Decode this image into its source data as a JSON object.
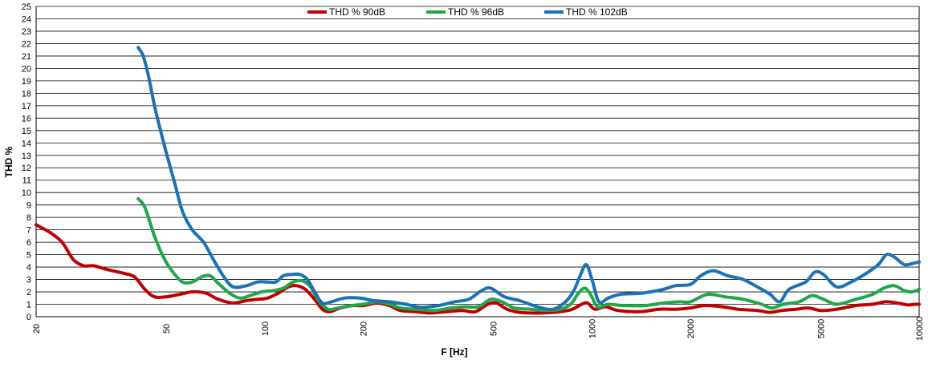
{
  "chart_data": {
    "type": "line",
    "xlabel": "F [Hz]",
    "ylabel": "THD %",
    "xscale": "log",
    "xlim": [
      20,
      10000
    ],
    "ylim": [
      0,
      25
    ],
    "x_ticks": [
      20,
      50,
      100,
      200,
      500,
      1000,
      2000,
      5000,
      10000
    ],
    "y_ticks": [
      0,
      1,
      2,
      3,
      4,
      5,
      6,
      7,
      8,
      9,
      10,
      11,
      12,
      13,
      14,
      15,
      16,
      17,
      18,
      19,
      20,
      21,
      22,
      23,
      24,
      25
    ],
    "grid": "horizontal",
    "legend_position": "top-center",
    "series": [
      {
        "name": "THD % 90dB",
        "color": "#c00000",
        "points": [
          [
            20,
            7.4
          ],
          [
            22,
            6.8
          ],
          [
            24,
            6.0
          ],
          [
            26,
            4.6
          ],
          [
            28,
            4.1
          ],
          [
            30,
            4.1
          ],
          [
            33,
            3.8
          ],
          [
            37,
            3.5
          ],
          [
            40,
            3.2
          ],
          [
            43,
            2.2
          ],
          [
            46,
            1.6
          ],
          [
            50,
            1.6
          ],
          [
            55,
            1.8
          ],
          [
            60,
            2.0
          ],
          [
            66,
            1.9
          ],
          [
            72,
            1.4
          ],
          [
            80,
            1.1
          ],
          [
            88,
            1.3
          ],
          [
            95,
            1.4
          ],
          [
            102,
            1.5
          ],
          [
            110,
            1.9
          ],
          [
            118,
            2.4
          ],
          [
            125,
            2.5
          ],
          [
            133,
            2.2
          ],
          [
            142,
            1.4
          ],
          [
            150,
            0.6
          ],
          [
            158,
            0.4
          ],
          [
            170,
            0.7
          ],
          [
            185,
            0.9
          ],
          [
            200,
            0.9
          ],
          [
            220,
            1.1
          ],
          [
            240,
            0.9
          ],
          [
            260,
            0.5
          ],
          [
            290,
            0.4
          ],
          [
            320,
            0.3
          ],
          [
            360,
            0.4
          ],
          [
            400,
            0.5
          ],
          [
            440,
            0.4
          ],
          [
            480,
            1.0
          ],
          [
            510,
            1.1
          ],
          [
            550,
            0.6
          ],
          [
            600,
            0.35
          ],
          [
            700,
            0.3
          ],
          [
            800,
            0.4
          ],
          [
            870,
            0.6
          ],
          [
            930,
            1.0
          ],
          [
            970,
            1.1
          ],
          [
            1020,
            0.6
          ],
          [
            1100,
            0.8
          ],
          [
            1200,
            0.5
          ],
          [
            1400,
            0.4
          ],
          [
            1600,
            0.6
          ],
          [
            1800,
            0.6
          ],
          [
            2000,
            0.7
          ],
          [
            2200,
            0.9
          ],
          [
            2500,
            0.8
          ],
          [
            2800,
            0.6
          ],
          [
            3200,
            0.5
          ],
          [
            3500,
            0.35
          ],
          [
            3800,
            0.5
          ],
          [
            4200,
            0.6
          ],
          [
            4600,
            0.7
          ],
          [
            5000,
            0.5
          ],
          [
            5600,
            0.6
          ],
          [
            6400,
            0.9
          ],
          [
            7200,
            1.0
          ],
          [
            7900,
            1.2
          ],
          [
            8600,
            1.1
          ],
          [
            9200,
            0.95
          ],
          [
            9700,
            1.0
          ],
          [
            10000,
            1.0
          ]
        ]
      },
      {
        "name": "THD % 96dB",
        "color": "#21a64a",
        "points": [
          [
            41,
            9.5
          ],
          [
            43,
            8.8
          ],
          [
            46,
            6.5
          ],
          [
            49,
            4.8
          ],
          [
            52,
            3.7
          ],
          [
            56,
            2.8
          ],
          [
            60,
            2.8
          ],
          [
            64,
            3.2
          ],
          [
            68,
            3.3
          ],
          [
            72,
            2.7
          ],
          [
            78,
            1.9
          ],
          [
            84,
            1.5
          ],
          [
            90,
            1.7
          ],
          [
            98,
            2.0
          ],
          [
            106,
            2.1
          ],
          [
            114,
            2.3
          ],
          [
            122,
            2.8
          ],
          [
            130,
            2.9
          ],
          [
            138,
            2.4
          ],
          [
            146,
            1.3
          ],
          [
            156,
            0.6
          ],
          [
            168,
            0.7
          ],
          [
            185,
            0.9
          ],
          [
            200,
            1.0
          ],
          [
            220,
            1.2
          ],
          [
            240,
            1.0
          ],
          [
            260,
            0.7
          ],
          [
            290,
            0.6
          ],
          [
            330,
            0.5
          ],
          [
            370,
            0.7
          ],
          [
            410,
            0.8
          ],
          [
            450,
            0.8
          ],
          [
            490,
            1.4
          ],
          [
            530,
            1.2
          ],
          [
            580,
            0.7
          ],
          [
            650,
            0.6
          ],
          [
            720,
            0.5
          ],
          [
            800,
            0.6
          ],
          [
            860,
            1.0
          ],
          [
            910,
            1.9
          ],
          [
            950,
            2.3
          ],
          [
            990,
            1.8
          ],
          [
            1040,
            0.8
          ],
          [
            1120,
            1.0
          ],
          [
            1250,
            0.9
          ],
          [
            1450,
            0.9
          ],
          [
            1650,
            1.1
          ],
          [
            1850,
            1.2
          ],
          [
            2000,
            1.2
          ],
          [
            2250,
            1.8
          ],
          [
            2550,
            1.6
          ],
          [
            2900,
            1.4
          ],
          [
            3300,
            1.0
          ],
          [
            3550,
            0.7
          ],
          [
            3850,
            1.0
          ],
          [
            4300,
            1.2
          ],
          [
            4700,
            1.7
          ],
          [
            5100,
            1.4
          ],
          [
            5600,
            1.0
          ],
          [
            6400,
            1.4
          ],
          [
            7200,
            1.8
          ],
          [
            7800,
            2.3
          ],
          [
            8400,
            2.5
          ],
          [
            9000,
            2.1
          ],
          [
            9500,
            2.0
          ],
          [
            10000,
            2.2
          ]
        ]
      },
      {
        "name": "THD % 102dB",
        "color": "#1b72b4",
        "points": [
          [
            41,
            21.7
          ],
          [
            42.5,
            21.0
          ],
          [
            44,
            19.5
          ],
          [
            46,
            17.0
          ],
          [
            48,
            15.0
          ],
          [
            50,
            13.2
          ],
          [
            53,
            10.8
          ],
          [
            56,
            8.5
          ],
          [
            60,
            7.0
          ],
          [
            65,
            6.0
          ],
          [
            70,
            4.5
          ],
          [
            75,
            3.2
          ],
          [
            80,
            2.4
          ],
          [
            88,
            2.5
          ],
          [
            95,
            2.8
          ],
          [
            102,
            2.8
          ],
          [
            108,
            2.8
          ],
          [
            114,
            3.3
          ],
          [
            120,
            3.4
          ],
          [
            128,
            3.4
          ],
          [
            135,
            3.0
          ],
          [
            142,
            2.0
          ],
          [
            150,
            1.1
          ],
          [
            160,
            1.2
          ],
          [
            175,
            1.5
          ],
          [
            195,
            1.5
          ],
          [
            215,
            1.3
          ],
          [
            240,
            1.2
          ],
          [
            270,
            1.0
          ],
          [
            300,
            0.75
          ],
          [
            340,
            0.9
          ],
          [
            380,
            1.2
          ],
          [
            420,
            1.4
          ],
          [
            460,
            2.1
          ],
          [
            490,
            2.3
          ],
          [
            540,
            1.6
          ],
          [
            600,
            1.3
          ],
          [
            680,
            0.8
          ],
          [
            760,
            0.6
          ],
          [
            830,
            1.2
          ],
          [
            880,
            2.1
          ],
          [
            920,
            3.3
          ],
          [
            960,
            4.2
          ],
          [
            1000,
            3.0
          ],
          [
            1050,
            1.2
          ],
          [
            1120,
            1.5
          ],
          [
            1220,
            1.8
          ],
          [
            1420,
            1.9
          ],
          [
            1650,
            2.2
          ],
          [
            1800,
            2.5
          ],
          [
            2000,
            2.6
          ],
          [
            2150,
            3.3
          ],
          [
            2350,
            3.7
          ],
          [
            2600,
            3.3
          ],
          [
            2900,
            3.0
          ],
          [
            3200,
            2.4
          ],
          [
            3500,
            1.8
          ],
          [
            3750,
            1.2
          ],
          [
            4000,
            2.2
          ],
          [
            4500,
            2.8
          ],
          [
            4800,
            3.6
          ],
          [
            5100,
            3.4
          ],
          [
            5600,
            2.4
          ],
          [
            6200,
            2.8
          ],
          [
            6900,
            3.5
          ],
          [
            7500,
            4.2
          ],
          [
            7950,
            5.0
          ],
          [
            8400,
            4.8
          ],
          [
            9000,
            4.2
          ],
          [
            9600,
            4.3
          ],
          [
            10000,
            4.4
          ]
        ]
      }
    ]
  }
}
